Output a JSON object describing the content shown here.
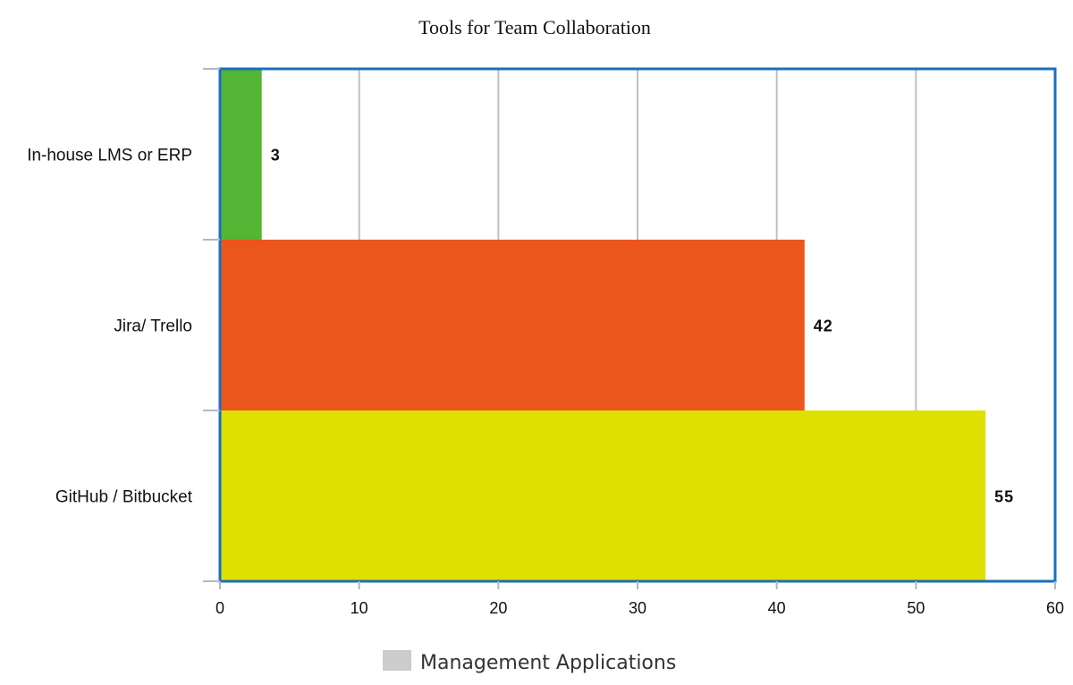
{
  "chart_data": {
    "type": "bar",
    "orientation": "horizontal",
    "title": "Tools for Team Collaboration",
    "categories": [
      "In-house LMS or ERP",
      "Jira/ Trello",
      "GitHub / Bitbucket"
    ],
    "series": [
      {
        "name": "Management Applications",
        "values": [
          3,
          42,
          55
        ]
      }
    ],
    "bar_colors": [
      "#52b533",
      "#eb561c",
      "#dde000"
    ],
    "value_labels": [
      "3",
      "42",
      "55"
    ],
    "xlim": [
      0,
      60
    ],
    "x_ticks": [
      0,
      10,
      20,
      30,
      40,
      50,
      60
    ],
    "x_tick_labels": [
      "0",
      "10",
      "20",
      "30",
      "40",
      "50",
      "60"
    ],
    "grid": "vertical",
    "legend": {
      "position": "bottom-center",
      "label": "Management Applications",
      "swatch_color": "#cccccc"
    },
    "frame_color": "#1a6fbd",
    "grid_color": "#c0c0c0"
  }
}
